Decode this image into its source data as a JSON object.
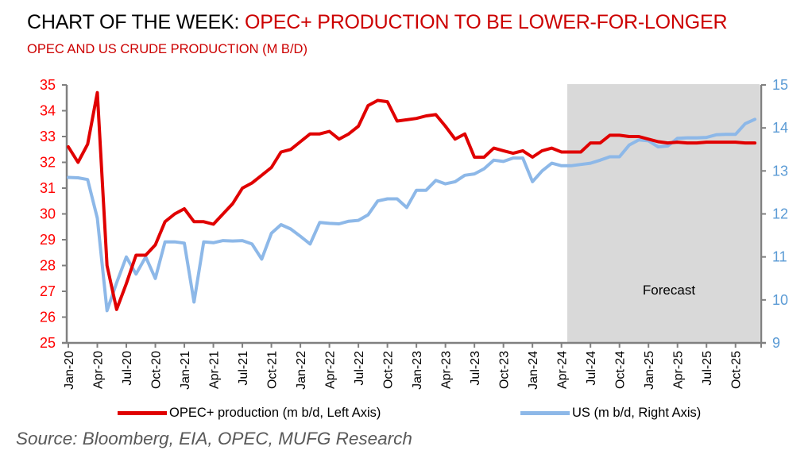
{
  "header": {
    "title_prefix": "CHART OF THE WEEK: ",
    "title_accent": "OPEC+ PRODUCTION TO BE LOWER-FOR-LONGER",
    "subtitle": "OPEC AND US CRUDE PRODUCTION (M B/D)"
  },
  "footer": {
    "source": "Source: Bloomberg,  EIA, OPEC, MUFG Research"
  },
  "colors": {
    "opec": "#e00000",
    "us": "#8db8e8",
    "forecast_band": "#d9d9d9",
    "axis": "#808080",
    "left_tick_text": "#ff0000",
    "right_tick_text": "#5b9bd5"
  },
  "chart_data": {
    "type": "line",
    "title": "OPEC AND US CRUDE PRODUCTION (M B/D)",
    "x_start": "Jan-20",
    "x_end": "Dec-25",
    "frequency": "monthly",
    "x_tick_labels": [
      "Jan-20",
      "Apr-20",
      "Jul-20",
      "Oct-20",
      "Jan-21",
      "Apr-21",
      "Jul-21",
      "Oct-21",
      "Jan-22",
      "Apr-22",
      "Jul-22",
      "Oct-22",
      "Jan-23",
      "Apr-23",
      "Jul-23",
      "Oct-23",
      "Jan-24",
      "Apr-24",
      "Jul-24",
      "Oct-24",
      "Jan-25",
      "Apr-25",
      "Jul-25",
      "Oct-25"
    ],
    "y_left": {
      "label": "m b/d",
      "ylim": [
        25,
        35
      ],
      "ticks": [
        25,
        26,
        27,
        28,
        29,
        30,
        31,
        32,
        33,
        34,
        35
      ]
    },
    "y_right": {
      "label": "m b/d",
      "ylim": [
        9,
        15
      ],
      "ticks": [
        9,
        10,
        11,
        12,
        13,
        14,
        15
      ]
    },
    "forecast": {
      "label": "Forecast",
      "start": "May-24",
      "end": "Dec-25"
    },
    "grid": false,
    "legend_position": "bottom",
    "series": [
      {
        "name": "OPEC+ production (m b/d, Left Axis)",
        "axis": "left",
        "values": [
          32.6,
          32.0,
          32.7,
          34.7,
          28.0,
          26.3,
          27.3,
          28.4,
          28.4,
          28.8,
          29.7,
          30.0,
          30.2,
          29.7,
          29.7,
          29.6,
          30.0,
          30.4,
          31.0,
          31.2,
          31.5,
          31.8,
          32.4,
          32.5,
          32.8,
          33.1,
          33.1,
          33.2,
          32.9,
          33.1,
          33.4,
          34.2,
          34.4,
          34.35,
          33.6,
          33.65,
          33.7,
          33.8,
          33.85,
          33.4,
          32.9,
          33.1,
          32.2,
          32.2,
          32.55,
          32.45,
          32.35,
          32.45,
          32.2,
          32.45,
          32.55,
          32.4,
          32.4,
          32.4,
          32.75,
          32.75,
          33.05,
          33.05,
          33.0,
          33.0,
          32.9,
          32.8,
          32.75,
          32.78,
          32.75,
          32.75,
          32.78,
          32.78,
          32.78,
          32.78,
          32.75,
          32.75
        ]
      },
      {
        "name": "US (m b/d, Right Axis)",
        "axis": "right",
        "values": [
          12.85,
          12.84,
          12.8,
          11.9,
          9.75,
          10.4,
          11.0,
          10.6,
          11.0,
          10.5,
          11.35,
          11.35,
          11.32,
          9.95,
          11.35,
          11.33,
          11.38,
          11.37,
          11.38,
          11.3,
          10.95,
          11.55,
          11.75,
          11.65,
          11.48,
          11.3,
          11.8,
          11.78,
          11.77,
          11.83,
          11.85,
          11.98,
          12.3,
          12.35,
          12.35,
          12.15,
          12.55,
          12.55,
          12.78,
          12.7,
          12.75,
          12.9,
          12.93,
          13.05,
          13.25,
          13.22,
          13.3,
          13.3,
          12.75,
          13.0,
          13.18,
          13.12,
          13.12,
          13.15,
          13.18,
          13.25,
          13.33,
          13.33,
          13.6,
          13.72,
          13.7,
          13.56,
          13.58,
          13.76,
          13.77,
          13.77,
          13.78,
          13.84,
          13.85,
          13.85,
          14.1,
          14.2
        ]
      }
    ]
  }
}
